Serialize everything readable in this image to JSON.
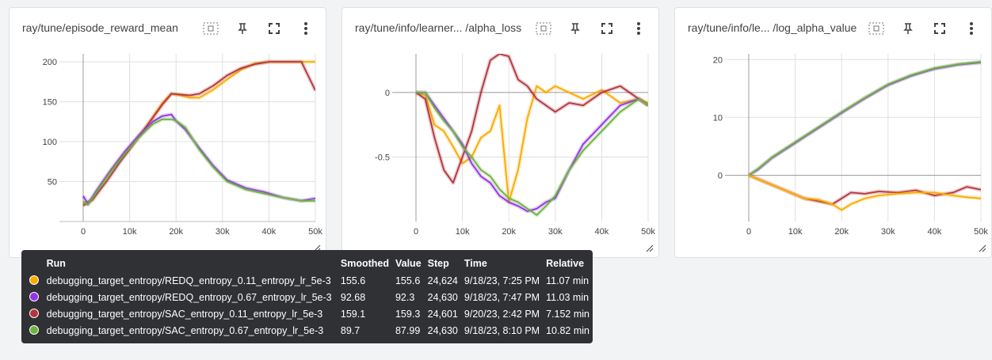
{
  "cards": [
    {
      "title": "ray/tune/episode_reward_mean"
    },
    {
      "title": "ray/tune/info/learner... /alpha_loss"
    },
    {
      "title": "ray/tune/info/le... /log_alpha_value"
    }
  ],
  "series_colors": {
    "REDQ_0.11": "#f9ab00",
    "REDQ_0.67": "#9334e6",
    "SAC_0.11": "#b3353d",
    "SAC_0.67": "#6cb33f"
  },
  "chart_data": [
    {
      "type": "line",
      "title": "ray/tune/episode_reward_mean",
      "x_ticks": [
        "0",
        "10k",
        "20k",
        "30k",
        "40k",
        "50k"
      ],
      "y_ticks": [
        "50",
        "100",
        "150",
        "200"
      ],
      "xlim": [
        0,
        50000
      ],
      "ylim": [
        0,
        210
      ],
      "series": [
        {
          "key": "REDQ_0.11",
          "x": [
            0,
            2000,
            5000,
            8000,
            11000,
            14000,
            17000,
            19000,
            21000,
            23000,
            25000,
            28000,
            31000,
            34000,
            37000,
            40000,
            44000,
            47000,
            50000
          ],
          "y": [
            22,
            28,
            55,
            78,
            100,
            122,
            148,
            160,
            158,
            155,
            155,
            165,
            178,
            190,
            198,
            200,
            200,
            200,
            200
          ]
        },
        {
          "key": "SAC_0.11",
          "x": [
            0,
            2000,
            5000,
            8000,
            11000,
            14000,
            17000,
            19000,
            21000,
            23000,
            25000,
            28000,
            31000,
            34000,
            37000,
            40000,
            44000,
            47000,
            50000
          ],
          "y": [
            20,
            27,
            50,
            75,
            98,
            122,
            146,
            160,
            159,
            158,
            160,
            170,
            183,
            192,
            197,
            200,
            200,
            200,
            164
          ]
        },
        {
          "key": "REDQ_0.67",
          "x": [
            0,
            1000,
            3000,
            6000,
            9000,
            12000,
            15000,
            17000,
            19000,
            20000,
            22000,
            25000,
            28000,
            31000,
            35000,
            39000,
            43000,
            47000,
            50000
          ],
          "y": [
            32,
            22,
            40,
            65,
            88,
            108,
            125,
            132,
            134,
            126,
            115,
            92,
            70,
            52,
            42,
            37,
            30,
            26,
            29
          ]
        },
        {
          "key": "SAC_0.67",
          "x": [
            0,
            1000,
            3000,
            6000,
            9000,
            12000,
            15000,
            17000,
            19000,
            20000,
            22000,
            25000,
            28000,
            31000,
            35000,
            39000,
            43000,
            47000,
            50000
          ],
          "y": [
            25,
            21,
            38,
            63,
            85,
            105,
            122,
            128,
            128,
            126,
            118,
            90,
            68,
            50,
            40,
            35,
            30,
            26,
            26
          ]
        }
      ]
    },
    {
      "type": "line",
      "title": "ray/tune/info/learner... /alpha_loss",
      "x_ticks": [
        "0",
        "10k",
        "20k",
        "30k",
        "40k",
        "50k"
      ],
      "y_ticks": [
        "-0.5",
        "0"
      ],
      "xlim": [
        0,
        50000
      ],
      "ylim": [
        -1.0,
        0.3
      ],
      "series": [
        {
          "key": "REDQ_0.11",
          "x": [
            0,
            2000,
            4000,
            6000,
            8000,
            10000,
            12000,
            14000,
            16000,
            18000,
            20000,
            22000,
            24000,
            26000,
            28000,
            30000,
            33000,
            36000,
            40000,
            44000,
            48000,
            50000
          ],
          "y": [
            0,
            -0.02,
            -0.25,
            -0.3,
            -0.42,
            -0.55,
            -0.5,
            -0.35,
            -0.3,
            -0.1,
            -0.85,
            -0.6,
            -0.2,
            0.05,
            0.0,
            0.05,
            0.0,
            -0.05,
            0.02,
            -0.08,
            -0.05,
            -0.08
          ]
        },
        {
          "key": "SAC_0.11",
          "x": [
            0,
            2000,
            4000,
            6000,
            8000,
            10000,
            12000,
            14000,
            16000,
            18000,
            20000,
            22000,
            24000,
            26000,
            28000,
            30000,
            33000,
            36000,
            40000,
            44000,
            48000,
            50000
          ],
          "y": [
            0,
            -0.05,
            -0.35,
            -0.6,
            -0.7,
            -0.5,
            -0.3,
            0.0,
            0.25,
            0.3,
            0.28,
            0.1,
            0.05,
            -0.05,
            -0.1,
            -0.15,
            -0.08,
            -0.1,
            0.0,
            0.05,
            -0.05,
            -0.1
          ]
        },
        {
          "key": "REDQ_0.67",
          "x": [
            0,
            2000,
            4000,
            6000,
            8000,
            10000,
            12000,
            14000,
            16000,
            18000,
            20000,
            22000,
            24000,
            26000,
            28000,
            30000,
            33000,
            36000,
            40000,
            44000,
            48000,
            50000
          ],
          "y": [
            0,
            0,
            -0.1,
            -0.2,
            -0.3,
            -0.4,
            -0.55,
            -0.65,
            -0.7,
            -0.8,
            -0.85,
            -0.88,
            -0.92,
            -0.9,
            -0.85,
            -0.82,
            -0.6,
            -0.4,
            -0.25,
            -0.1,
            -0.05,
            -0.1
          ]
        },
        {
          "key": "SAC_0.67",
          "x": [
            0,
            2000,
            4000,
            6000,
            8000,
            10000,
            12000,
            14000,
            16000,
            18000,
            20000,
            22000,
            24000,
            26000,
            28000,
            30000,
            33000,
            36000,
            40000,
            44000,
            48000,
            50000
          ],
          "y": [
            0,
            0,
            -0.12,
            -0.22,
            -0.3,
            -0.42,
            -0.5,
            -0.6,
            -0.65,
            -0.75,
            -0.82,
            -0.85,
            -0.9,
            -0.95,
            -0.88,
            -0.8,
            -0.6,
            -0.45,
            -0.3,
            -0.15,
            -0.05,
            -0.1
          ]
        }
      ]
    },
    {
      "type": "line",
      "title": "ray/tune/info/le... /log_alpha_value",
      "x_ticks": [
        "0",
        "10k",
        "20k",
        "30k",
        "40k",
        "50k"
      ],
      "y_ticks": [
        "0",
        "10",
        "20"
      ],
      "xlim": [
        0,
        50000
      ],
      "ylim": [
        -8,
        21
      ],
      "series": [
        {
          "key": "REDQ_0.67",
          "x": [
            0,
            2000,
            5000,
            10000,
            15000,
            20000,
            25000,
            30000,
            35000,
            40000,
            45000,
            50000
          ],
          "y": [
            0,
            1,
            3,
            5.6,
            8.2,
            10.8,
            13.3,
            15.6,
            17.2,
            18.4,
            19.1,
            19.5
          ]
        },
        {
          "key": "SAC_0.67",
          "x": [
            0,
            2000,
            5000,
            10000,
            15000,
            20000,
            25000,
            30000,
            35000,
            40000,
            45000,
            50000
          ],
          "y": [
            0,
            1.1,
            3.1,
            5.7,
            8.3,
            10.9,
            13.4,
            15.7,
            17.3,
            18.5,
            19.2,
            19.6
          ]
        },
        {
          "key": "SAC_0.11",
          "x": [
            0,
            3000,
            6000,
            9000,
            12000,
            15000,
            18000,
            20000,
            22000,
            25000,
            28000,
            32000,
            36000,
            40000,
            44000,
            47000,
            50000
          ],
          "y": [
            0,
            -1,
            -2,
            -3,
            -4,
            -4.5,
            -5,
            -4,
            -3,
            -3.2,
            -2.8,
            -3,
            -2.6,
            -3.5,
            -3,
            -2,
            -2.5
          ]
        },
        {
          "key": "REDQ_0.11",
          "x": [
            0,
            3000,
            6000,
            9000,
            12000,
            15000,
            18000,
            20000,
            22000,
            25000,
            28000,
            32000,
            36000,
            40000,
            44000,
            47000,
            50000
          ],
          "y": [
            0,
            -1,
            -2,
            -3,
            -4,
            -4.2,
            -5,
            -6,
            -5,
            -4,
            -3.5,
            -3.2,
            -3,
            -3,
            -3.5,
            -3.8,
            -4
          ]
        }
      ]
    }
  ],
  "tooltip": {
    "headers": {
      "run": "Run",
      "smoothed": "Smoothed",
      "value": "Value",
      "step": "Step",
      "time": "Time",
      "relative": "Relative"
    },
    "rows": [
      {
        "color": "#f9ab00",
        "run": "debugging_target_entropy/REDQ_entropy_0.11_entropy_lr_5e-3",
        "smoothed": "155.6",
        "value": "155.6",
        "step": "24,624",
        "time": "9/18/23, 7:25 PM",
        "relative": "11.07 min"
      },
      {
        "color": "#9334e6",
        "run": "debugging_target_entropy/REDQ_entropy_0.67_entropy_lr_5e-3",
        "smoothed": "92.68",
        "value": "92.3",
        "step": "24,630",
        "time": "9/18/23, 7:47 PM",
        "relative": "11.03 min"
      },
      {
        "color": "#b3353d",
        "run": "debugging_target_entropy/SAC_entropy_0.11_entropy_lr_5e-3",
        "smoothed": "159.1",
        "value": "159.3",
        "step": "24,601",
        "time": "9/20/23, 2:42 PM",
        "relative": "7.152 min"
      },
      {
        "color": "#6cb33f",
        "run": "debugging_target_entropy/SAC_entropy_0.67_entropy_lr_5e-3",
        "smoothed": "89.7",
        "value": "87.99",
        "step": "24,630",
        "time": "9/18/23, 8:10 PM",
        "relative": "10.82 min"
      }
    ]
  }
}
